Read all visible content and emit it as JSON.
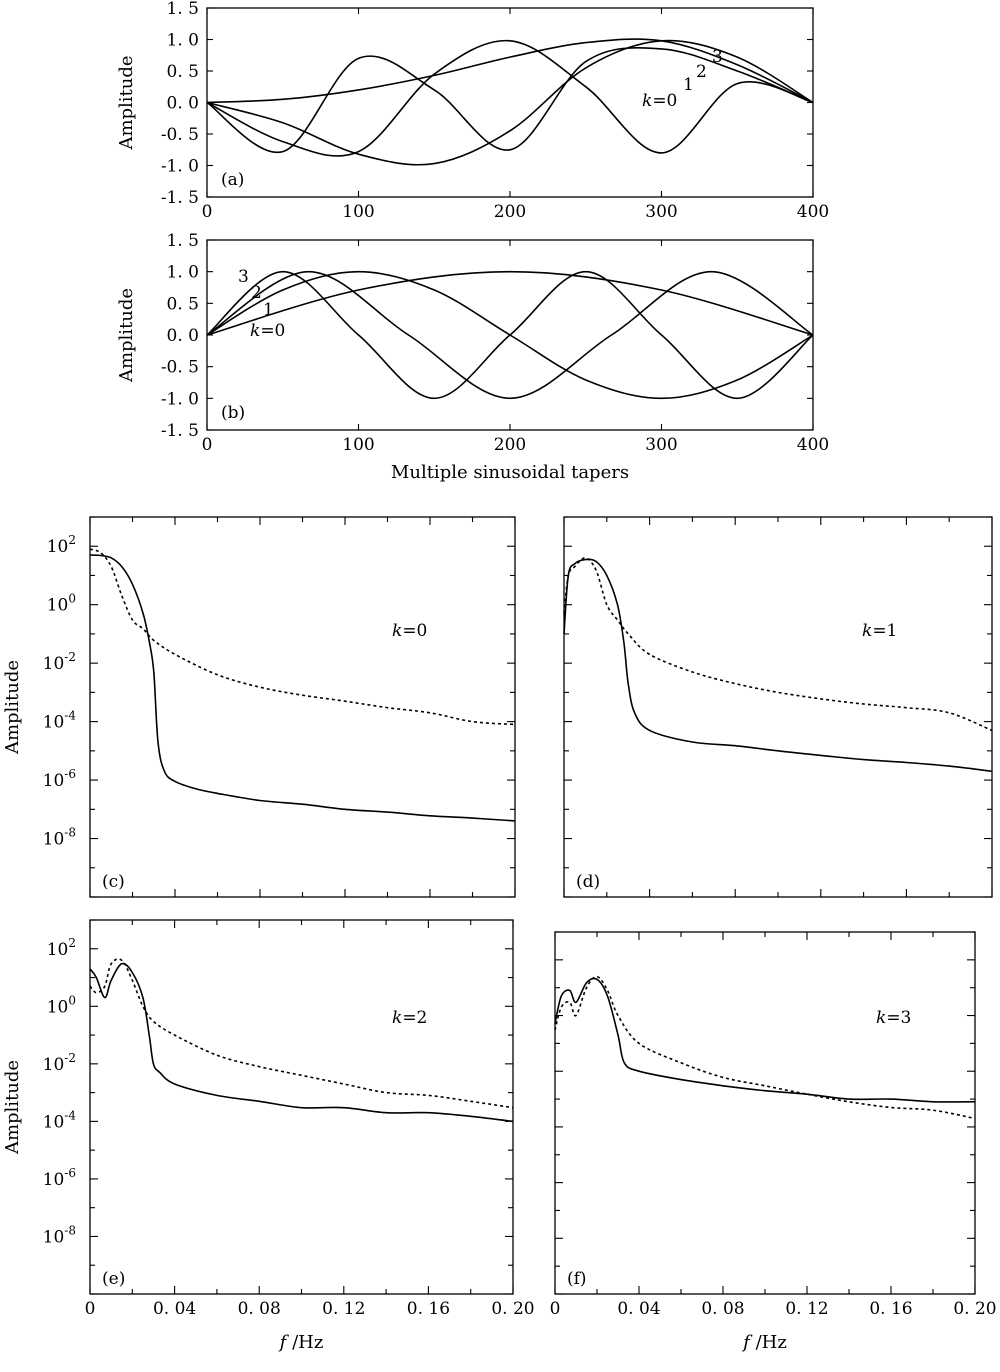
{
  "chart_data": [
    {
      "panel": "(a)",
      "type": "line",
      "ylabel": "Amplitude",
      "xlabel": "",
      "xlim": [
        0,
        400
      ],
      "ylim": [
        -1.5,
        1.5
      ],
      "xticks": [
        "0",
        "100",
        "200",
        "300",
        "400"
      ],
      "yticks": [
        "1. 5",
        "1. 0",
        "0. 5",
        "0. 0",
        "-0. 5",
        "-1. 0",
        "-1. 5"
      ],
      "curve_labels": [
        "k=0",
        "1",
        "2",
        "3"
      ],
      "series": [
        {
          "name": "k=0",
          "x": [
            0,
            50,
            100,
            150,
            200,
            250,
            300,
            350,
            400
          ],
          "y": [
            0,
            0.05,
            0.2,
            0.43,
            0.72,
            0.95,
            0.98,
            0.6,
            0
          ]
        },
        {
          "name": "1",
          "x": [
            0,
            50,
            100,
            150,
            200,
            250,
            300,
            350,
            400
          ],
          "y": [
            0,
            -0.32,
            -0.82,
            -0.97,
            -0.45,
            0.55,
            0.98,
            0.72,
            0
          ]
        },
        {
          "name": "2",
          "x": [
            0,
            50,
            100,
            150,
            200,
            250,
            300,
            350,
            400
          ],
          "y": [
            0,
            -0.62,
            -0.78,
            0.45,
            0.98,
            0.25,
            -0.8,
            0.3,
            0
          ]
        },
        {
          "name": "3",
          "x": [
            0,
            50,
            100,
            150,
            200,
            250,
            300,
            350,
            400
          ],
          "y": [
            0,
            -0.78,
            0.7,
            0.2,
            -0.75,
            0.65,
            0.85,
            0.5,
            0
          ]
        }
      ]
    },
    {
      "panel": "(b)",
      "type": "line",
      "ylabel": "Amplitude",
      "xlabel": "Multiple sinusoidal tapers",
      "xlim": [
        0,
        400
      ],
      "ylim": [
        -1.5,
        1.5
      ],
      "xticks": [
        "0",
        "100",
        "200",
        "300",
        "400"
      ],
      "yticks": [
        "1. 5",
        "1. 0",
        "0. 5",
        "0. 0",
        "-0. 5",
        "-1. 0",
        "-1. 5"
      ],
      "curve_labels": [
        "k=0",
        "1",
        "2",
        "3"
      ],
      "series": [
        {
          "name": "k=0",
          "x": [
            0,
            100,
            200,
            300,
            400
          ],
          "y": [
            0,
            0.71,
            1,
            0.71,
            0
          ]
        },
        {
          "name": "1",
          "x": [
            0,
            50,
            100,
            150,
            200,
            250,
            300,
            350,
            400
          ],
          "y": [
            0,
            0.71,
            1,
            0.71,
            0,
            -0.71,
            -1,
            -0.71,
            0
          ]
        },
        {
          "name": "2",
          "x": [
            0,
            67,
            133,
            200,
            267,
            333,
            400
          ],
          "y": [
            0,
            1,
            0,
            -1,
            0,
            1,
            0
          ]
        },
        {
          "name": "3",
          "x": [
            0,
            50,
            100,
            150,
            200,
            250,
            300,
            350,
            400
          ],
          "y": [
            0,
            1,
            0,
            -1,
            0,
            1,
            0,
            -1,
            0
          ]
        }
      ]
    },
    {
      "panel": "(c)",
      "type": "line",
      "ylabel": "Amplitude",
      "xlabel": "",
      "yscale": "log",
      "xlim": [
        0,
        0.2
      ],
      "ylim": [
        1e-10,
        1000.0
      ],
      "yticks": [
        "10^2",
        "10^0",
        "10^-2",
        "10^-4",
        "10^-6",
        "10^-8"
      ],
      "curve_label": "k=0",
      "series": [
        {
          "style": "solid",
          "x": [
            0,
            0.005,
            0.01,
            0.015,
            0.02,
            0.025,
            0.028,
            0.03,
            0.032,
            0.035,
            0.04,
            0.05,
            0.06,
            0.08,
            0.1,
            0.12,
            0.14,
            0.16,
            0.18,
            0.2
          ],
          "y": [
            50,
            48,
            40,
            20,
            5,
            0.5,
            0.05,
            0.005,
            2e-05,
            2e-06,
            9e-07,
            5e-07,
            3.5e-07,
            2e-07,
            1.5e-07,
            1e-07,
            8e-08,
            6e-08,
            5e-08,
            4e-08
          ]
        },
        {
          "style": "dotted",
          "x": [
            0,
            0.005,
            0.01,
            0.015,
            0.02,
            0.025,
            0.03,
            0.04,
            0.06,
            0.08,
            0.1,
            0.12,
            0.14,
            0.16,
            0.18,
            0.2
          ],
          "y": [
            80,
            60,
            20,
            2,
            0.3,
            0.15,
            0.06,
            0.02,
            0.004,
            0.0015,
            0.0008,
            0.0005,
            0.0003,
            0.0002,
            0.0001,
            8e-05
          ]
        }
      ]
    },
    {
      "panel": "(d)",
      "type": "line",
      "ylabel": "",
      "xlabel": "",
      "yscale": "log",
      "xlim": [
        0,
        0.2
      ],
      "ylim": [
        1e-10,
        1000.0
      ],
      "yticks": [],
      "curve_label": "k=1",
      "series": [
        {
          "style": "solid",
          "x": [
            0,
            0.002,
            0.005,
            0.01,
            0.015,
            0.02,
            0.025,
            0.028,
            0.03,
            0.033,
            0.04,
            0.06,
            0.08,
            0.1,
            0.12,
            0.14,
            0.16,
            0.18,
            0.2
          ],
          "y": [
            0.1,
            10,
            25,
            35,
            30,
            10,
            1,
            0.05,
            0.002,
            0.0002,
            5e-05,
            2e-05,
            1.5e-05,
            1e-05,
            7e-06,
            5e-06,
            4e-06,
            3e-06,
            2e-06
          ]
        },
        {
          "style": "dotted",
          "x": [
            0,
            0.002,
            0.005,
            0.01,
            0.015,
            0.02,
            0.025,
            0.03,
            0.04,
            0.06,
            0.08,
            0.1,
            0.12,
            0.14,
            0.16,
            0.18,
            0.2
          ],
          "y": [
            0.5,
            10,
            20,
            40,
            15,
            1,
            0.3,
            0.1,
            0.02,
            0.005,
            0.002,
            0.001,
            0.0006,
            0.0004,
            0.0003,
            0.0002,
            5e-05
          ]
        }
      ]
    },
    {
      "panel": "(e)",
      "type": "line",
      "ylabel": "Amplitude",
      "xlabel": "f /Hz",
      "yscale": "log",
      "xlim": [
        0,
        0.2
      ],
      "ylim": [
        1e-10,
        1000.0
      ],
      "xticks": [
        "0",
        "0. 04",
        "0. 08",
        "0. 12",
        "0. 16",
        "0. 20"
      ],
      "yticks": [
        "10^2",
        "10^0",
        "10^-2",
        "10^-4",
        "10^-6",
        "10^-8"
      ],
      "curve_label": "k=2",
      "series": [
        {
          "style": "solid",
          "x": [
            0,
            0.003,
            0.007,
            0.01,
            0.015,
            0.02,
            0.025,
            0.028,
            0.03,
            0.033,
            0.04,
            0.06,
            0.08,
            0.1,
            0.12,
            0.14,
            0.16,
            0.18,
            0.2
          ],
          "y": [
            20,
            10,
            2,
            8,
            30,
            15,
            2,
            0.1,
            0.01,
            0.005,
            0.002,
            0.0008,
            0.0005,
            0.0003,
            0.0003,
            0.0002,
            0.0002,
            0.00015,
            0.0001
          ]
        },
        {
          "style": "dotted",
          "x": [
            0,
            0.003,
            0.007,
            0.01,
            0.015,
            0.02,
            0.025,
            0.03,
            0.04,
            0.06,
            0.08,
            0.1,
            0.12,
            0.14,
            0.16,
            0.18,
            0.2
          ],
          "y": [
            5,
            3,
            5,
            30,
            40,
            8,
            1,
            0.3,
            0.1,
            0.02,
            0.008,
            0.004,
            0.002,
            0.001,
            0.0008,
            0.0005,
            0.0003
          ]
        }
      ]
    },
    {
      "panel": "(f)",
      "type": "line",
      "ylabel": "",
      "xlabel": "f /Hz",
      "yscale": "log",
      "xlim": [
        0,
        0.2
      ],
      "ylim": [
        1e-10,
        1000.0
      ],
      "xticks": [
        "0",
        "0. 04",
        "0. 08",
        "0. 12",
        "0. 16",
        "0. 20"
      ],
      "yticks": [],
      "curve_label": "k=3",
      "series": [
        {
          "style": "solid",
          "x": [
            0,
            0.003,
            0.007,
            0.01,
            0.015,
            0.02,
            0.025,
            0.03,
            0.033,
            0.04,
            0.06,
            0.08,
            0.1,
            0.12,
            0.14,
            0.16,
            0.18,
            0.2
          ],
          "y": [
            0.5,
            5,
            8,
            3,
            15,
            20,
            5,
            0.2,
            0.02,
            0.01,
            0.005,
            0.003,
            0.002,
            0.0015,
            0.001,
            0.001,
            0.0008,
            0.0008
          ]
        },
        {
          "style": "dotted",
          "x": [
            0,
            0.003,
            0.007,
            0.01,
            0.015,
            0.02,
            0.025,
            0.03,
            0.04,
            0.06,
            0.08,
            0.1,
            0.12,
            0.14,
            0.16,
            0.18,
            0.2
          ],
          "y": [
            0.3,
            2,
            3,
            1,
            10,
            25,
            8,
            1,
            0.1,
            0.02,
            0.006,
            0.003,
            0.0015,
            0.0008,
            0.0005,
            0.0004,
            0.0002
          ]
        }
      ]
    }
  ]
}
